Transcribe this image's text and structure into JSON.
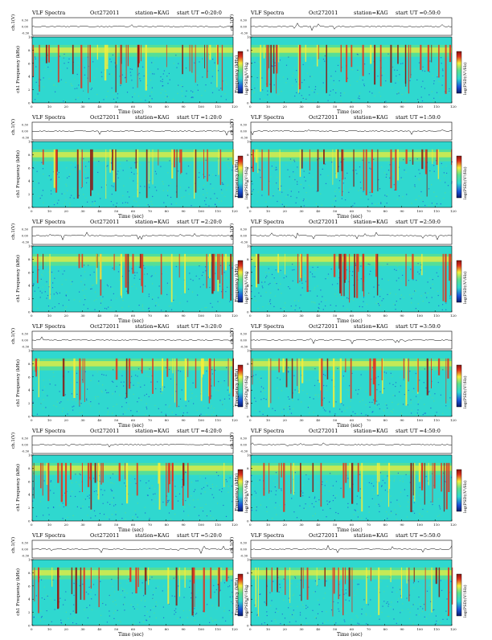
{
  "header": {
    "title": "VLF Spectra",
    "date": "Oct272011",
    "station": "station=KAG"
  },
  "colors": {
    "background_cyan": "#2fd8cf",
    "green": "#5fe08a",
    "yellow": "#f5ee3a",
    "red": "#e0301e",
    "dark_red": "#8a1410",
    "blue": "#1a4fd6",
    "navy": "#0a1a6a"
  },
  "chart_data": [
    {
      "type": "heatmap",
      "start_ut": "start UT =0:20:0",
      "ylabel": "ch1 Frequency (kHz)",
      "ch_label": "ch.1(V)",
      "colorbar_label": "log(PSD)(V²/Hz)",
      "xlabel": "Time (sec)",
      "xlim": [
        0,
        120
      ],
      "ylim": [
        0,
        10
      ],
      "ch_ticks": [
        "0.30",
        "0.00",
        "-0.30"
      ]
    },
    {
      "type": "heatmap",
      "start_ut": "start UT =0:50:0",
      "ylabel": "Frequency (kHz)",
      "ch_label": "ch.1(V)",
      "colorbar_label": "log(PSD)(V²/Hz)",
      "xlabel": "Time (sec)",
      "xlim": [
        0,
        120
      ],
      "ylim": [
        0,
        10
      ],
      "ch_ticks": [
        "0.30",
        "0.00",
        "-0.30"
      ]
    },
    {
      "type": "heatmap",
      "start_ut": "start UT =1:20:0",
      "ylabel": "ch1 Frequency (kHz)",
      "ch_label": "ch.1(V)",
      "colorbar_label": "log(PSD)(V²/Hz)",
      "xlabel": "Time (sec)",
      "xlim": [
        0,
        120
      ],
      "ylim": [
        0,
        10
      ],
      "ch_ticks": [
        "0.30",
        "0.00",
        "-0.30"
      ]
    },
    {
      "type": "heatmap",
      "start_ut": "start UT =1:50:0",
      "ylabel": "Frequency (kHz)",
      "ch_label": "ch.1(V)",
      "colorbar_label": "log(PSD)(V²/Hz)",
      "xlabel": "Time (sec)",
      "xlim": [
        0,
        120
      ],
      "ylim": [
        0,
        10
      ],
      "ch_ticks": [
        "0.30",
        "0.00",
        "-0.30"
      ]
    },
    {
      "type": "heatmap",
      "start_ut": "start UT =2:20:0",
      "ylabel": "ch1 Frequency (kHz)",
      "ch_label": "ch.1(V)",
      "colorbar_label": "log(PSD)(V²/Hz)",
      "xlabel": "Time (sec)",
      "xlim": [
        0,
        120
      ],
      "ylim": [
        0,
        10
      ],
      "ch_ticks": [
        "0.30",
        "0.00",
        "-0.30"
      ]
    },
    {
      "type": "heatmap",
      "start_ut": "start UT =2:50:0",
      "ylabel": "Frequency (kHz)",
      "ch_label": "ch.1(V)",
      "colorbar_label": "log(PSD)(V²/Hz)",
      "xlabel": "Time (sec)",
      "xlim": [
        0,
        120
      ],
      "ylim": [
        0,
        10
      ],
      "ch_ticks": [
        "0.30",
        "0.00",
        "-0.30"
      ]
    },
    {
      "type": "heatmap",
      "start_ut": "start UT =3:20:0",
      "ylabel": "ch1 Frequency (kHz)",
      "ch_label": "ch.1(V)",
      "colorbar_label": "log(PSD)(V²/Hz)",
      "xlabel": "Time (sec)",
      "xlim": [
        0,
        120
      ],
      "ylim": [
        0,
        10
      ],
      "ch_ticks": [
        "0.30",
        "0.00",
        "-0.30"
      ]
    },
    {
      "type": "heatmap",
      "start_ut": "start UT =3:50:0",
      "ylabel": "Frequency (kHz)",
      "ch_label": "ch.1(V)",
      "colorbar_label": "log(PSD)(V²/Hz)",
      "xlabel": "Time (sec)",
      "xlim": [
        0,
        120
      ],
      "ylim": [
        0,
        10
      ],
      "ch_ticks": [
        "0.30",
        "0.00",
        "-0.30"
      ]
    },
    {
      "type": "heatmap",
      "start_ut": "start UT =4:20:0",
      "ylabel": "ch1 Frequency (kHz)",
      "ch_label": "ch.1(V)",
      "colorbar_label": "log(PSD)(V²/Hz)",
      "xlabel": "Time (sec)",
      "xlim": [
        0,
        120
      ],
      "ylim": [
        0,
        10
      ],
      "ch_ticks": [
        "0.30",
        "0.00",
        "-0.30"
      ]
    },
    {
      "type": "heatmap",
      "start_ut": "start UT =4:50:0",
      "ylabel": "Frequency (kHz)",
      "ch_label": "ch.1(V)",
      "colorbar_label": "log(PSD)(V²/Hz)",
      "xlabel": "Time (sec)",
      "xlim": [
        0,
        120
      ],
      "ylim": [
        0,
        10
      ],
      "ch_ticks": [
        "0.30",
        "0.00",
        "-0.30"
      ]
    },
    {
      "type": "heatmap",
      "start_ut": "start UT =5:20:0",
      "ylabel": "ch1 Frequency (kHz)",
      "ch_label": "ch.1(V)",
      "colorbar_label": "log(PSD)(V²/Hz)",
      "xlabel": "Time (sec)",
      "xlim": [
        0,
        120
      ],
      "ylim": [
        0,
        10
      ],
      "ch_ticks": [
        "0.30",
        "0.00",
        "-0.30"
      ]
    },
    {
      "type": "heatmap",
      "start_ut": "start UT =5:50:0",
      "ylabel": "Frequency (kHz)",
      "ch_label": "ch.1(V)",
      "colorbar_label": "log(PSD)(V²/Hz)",
      "xlabel": "Time (sec)",
      "xlim": [
        0,
        120
      ],
      "ylim": [
        0,
        10
      ],
      "ch_ticks": [
        "0.30",
        "0.00",
        "-0.30"
      ]
    }
  ],
  "x_ticks": [
    0,
    10,
    20,
    30,
    40,
    50,
    60,
    70,
    80,
    90,
    100,
    110,
    120
  ],
  "y_ticks": [
    0,
    2,
    4,
    6,
    8,
    10
  ]
}
